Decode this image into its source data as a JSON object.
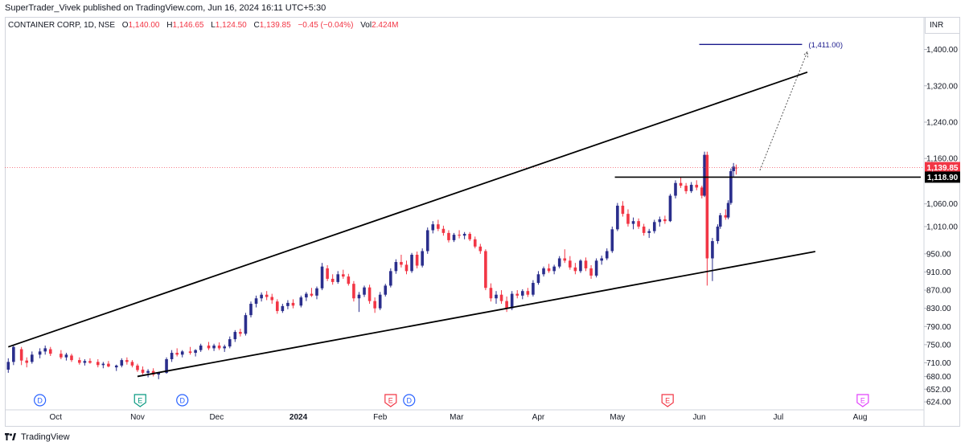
{
  "header": {
    "publisher_line": "SuperTrader_Vivek published on TradingView.com, Jun 16, 2024 16:11 UTC+5:30"
  },
  "legend": {
    "symbol": "CONTAINER CORP, 1D, NSE",
    "open_key": "O",
    "open": "1,140.00",
    "high_key": "H",
    "high": "1,146.65",
    "low_key": "L",
    "low": "1,124.50",
    "close_key": "C",
    "close": "1,139.85",
    "change": "−0.45 (−0.04%)",
    "volume_key": "Vol",
    "volume": "2.424M"
  },
  "currency": "INR",
  "footer": {
    "brand": "TradingView"
  },
  "colors": {
    "up": "#2a2e8c",
    "down": "#f23645",
    "line": "#000000",
    "target": "#1a1a8c",
    "price_line": "#f23645",
    "event_dividend": "#2962ff",
    "event_earnings_past": "#089981",
    "event_earnings_red": "#f23645",
    "event_earnings_future": "#e040fb"
  },
  "chart_data": {
    "type": "candlestick",
    "symbol": "CONTAINER CORP",
    "interval": "1D",
    "exchange": "NSE",
    "ylim": [
      610,
      1470
    ],
    "price_axis_labels": [
      "1,400.00",
      "1,320.00",
      "1,240.00",
      "1,160.00",
      "1,060.00",
      "1,010.00",
      "950.00",
      "910.00",
      "870.00",
      "830.00",
      "790.00",
      "750.00",
      "710.00",
      "680.00",
      "652.00",
      "624.00"
    ],
    "price_axis_values": [
      1400,
      1320,
      1240,
      1160,
      1060,
      1010,
      950,
      910,
      870,
      830,
      790,
      750,
      710,
      680,
      652,
      624
    ],
    "time_axis_labels": [
      "Oct",
      "Nov",
      "Dec",
      "2024",
      "Feb",
      "Mar",
      "Apr",
      "May",
      "Jun",
      "Jul",
      "Aug"
    ],
    "time_axis_bold": "2024",
    "time_axis_dates": [
      "2023-10-01",
      "2023-11-01",
      "2023-12-01",
      "2024-01-01",
      "2024-02-01",
      "2024-03-01",
      "2024-04-01",
      "2024-05-01",
      "2024-06-01",
      "2024-07-01",
      "2024-08-01"
    ],
    "x_range": [
      "2023-09-12",
      "2024-08-24"
    ],
    "last_price": {
      "label": "1,139.85",
      "value": 1139.85
    },
    "level_line": {
      "label": "1,118.90",
      "value": 1118.9,
      "from": "2024-04-30",
      "to": "2024-08-24"
    },
    "target": {
      "label": "(1,411.00)",
      "value": 1411,
      "from": "2024-06-01",
      "to": "2024-07-10"
    },
    "channel": {
      "upper": [
        [
          "2023-09-13",
          745
        ],
        [
          "2024-07-12",
          1350
        ]
      ],
      "lower": [
        [
          "2023-11-01",
          680
        ],
        [
          "2024-07-15",
          955
        ]
      ]
    },
    "projection": [
      [
        "2024-06-24",
        1134
      ],
      [
        "2024-07-12",
        1395
      ]
    ],
    "events": [
      {
        "label": "D",
        "type": "dividend",
        "date": "2023-09-25"
      },
      {
        "label": "E",
        "type": "earnings",
        "date": "2023-11-02"
      },
      {
        "label": "D",
        "type": "dividend",
        "date": "2023-11-18"
      },
      {
        "label": "E",
        "type": "earnings",
        "date": "2024-02-05"
      },
      {
        "label": "D",
        "type": "dividend",
        "date": "2024-02-12"
      },
      {
        "label": "E",
        "type": "earnings",
        "date": "2024-05-20"
      },
      {
        "label": "E",
        "type": "earnings_future",
        "date": "2024-08-02"
      }
    ],
    "candles": [
      {
        "d": "2023-09-13",
        "o": 695,
        "h": 720,
        "l": 688,
        "c": 712
      },
      {
        "d": "2023-09-15",
        "o": 712,
        "h": 748,
        "l": 705,
        "c": 745
      },
      {
        "d": "2023-09-18",
        "o": 740,
        "h": 745,
        "l": 705,
        "c": 715
      },
      {
        "d": "2023-09-20",
        "o": 715,
        "h": 722,
        "l": 700,
        "c": 710
      },
      {
        "d": "2023-09-22",
        "o": 712,
        "h": 735,
        "l": 708,
        "c": 728
      },
      {
        "d": "2023-09-25",
        "o": 728,
        "h": 742,
        "l": 720,
        "c": 735
      },
      {
        "d": "2023-09-27",
        "o": 735,
        "h": 748,
        "l": 728,
        "c": 742
      },
      {
        "d": "2023-09-29",
        "o": 740,
        "h": 745,
        "l": 725,
        "c": 730
      },
      {
        "d": "2023-10-03",
        "o": 730,
        "h": 738,
        "l": 718,
        "c": 722
      },
      {
        "d": "2023-10-05",
        "o": 722,
        "h": 732,
        "l": 715,
        "c": 728
      },
      {
        "d": "2023-10-07",
        "o": 726,
        "h": 730,
        "l": 712,
        "c": 716
      },
      {
        "d": "2023-10-10",
        "o": 716,
        "h": 722,
        "l": 706,
        "c": 710
      },
      {
        "d": "2023-10-12",
        "o": 710,
        "h": 718,
        "l": 704,
        "c": 714
      },
      {
        "d": "2023-10-14",
        "o": 714,
        "h": 720,
        "l": 708,
        "c": 710
      },
      {
        "d": "2023-10-17",
        "o": 712,
        "h": 718,
        "l": 700,
        "c": 705
      },
      {
        "d": "2023-10-19",
        "o": 705,
        "h": 712,
        "l": 698,
        "c": 708
      },
      {
        "d": "2023-10-21",
        "o": 708,
        "h": 714,
        "l": 700,
        "c": 702
      },
      {
        "d": "2023-10-24",
        "o": 700,
        "h": 706,
        "l": 692,
        "c": 704
      },
      {
        "d": "2023-10-26",
        "o": 704,
        "h": 720,
        "l": 700,
        "c": 716
      },
      {
        "d": "2023-10-28",
        "o": 716,
        "h": 722,
        "l": 706,
        "c": 712
      },
      {
        "d": "2023-10-30",
        "o": 712,
        "h": 716,
        "l": 700,
        "c": 704
      },
      {
        "d": "2023-11-01",
        "o": 704,
        "h": 708,
        "l": 690,
        "c": 694
      },
      {
        "d": "2023-11-03",
        "o": 695,
        "h": 702,
        "l": 684,
        "c": 688
      },
      {
        "d": "2023-11-05",
        "o": 688,
        "h": 696,
        "l": 678,
        "c": 692
      },
      {
        "d": "2023-11-07",
        "o": 692,
        "h": 698,
        "l": 680,
        "c": 684
      },
      {
        "d": "2023-11-09",
        "o": 684,
        "h": 690,
        "l": 674,
        "c": 688
      },
      {
        "d": "2023-11-12",
        "o": 688,
        "h": 722,
        "l": 686,
        "c": 718
      },
      {
        "d": "2023-11-14",
        "o": 718,
        "h": 738,
        "l": 712,
        "c": 732
      },
      {
        "d": "2023-11-16",
        "o": 732,
        "h": 742,
        "l": 724,
        "c": 728
      },
      {
        "d": "2023-11-18",
        "o": 728,
        "h": 738,
        "l": 722,
        "c": 735
      },
      {
        "d": "2023-11-21",
        "o": 735,
        "h": 745,
        "l": 728,
        "c": 732
      },
      {
        "d": "2023-11-23",
        "o": 732,
        "h": 740,
        "l": 724,
        "c": 738
      },
      {
        "d": "2023-11-25",
        "o": 738,
        "h": 752,
        "l": 734,
        "c": 748
      },
      {
        "d": "2023-11-28",
        "o": 748,
        "h": 756,
        "l": 738,
        "c": 742
      },
      {
        "d": "2023-11-30",
        "o": 742,
        "h": 752,
        "l": 736,
        "c": 748
      },
      {
        "d": "2023-12-02",
        "o": 748,
        "h": 755,
        "l": 738,
        "c": 742
      },
      {
        "d": "2023-12-04",
        "o": 742,
        "h": 750,
        "l": 734,
        "c": 746
      },
      {
        "d": "2023-12-06",
        "o": 746,
        "h": 768,
        "l": 742,
        "c": 762
      },
      {
        "d": "2023-12-08",
        "o": 762,
        "h": 782,
        "l": 756,
        "c": 778
      },
      {
        "d": "2023-12-10",
        "o": 778,
        "h": 785,
        "l": 768,
        "c": 774
      },
      {
        "d": "2023-12-12",
        "o": 774,
        "h": 820,
        "l": 770,
        "c": 815
      },
      {
        "d": "2023-12-14",
        "o": 815,
        "h": 845,
        "l": 810,
        "c": 840
      },
      {
        "d": "2023-12-16",
        "o": 840,
        "h": 858,
        "l": 832,
        "c": 852
      },
      {
        "d": "2023-12-18",
        "o": 852,
        "h": 865,
        "l": 845,
        "c": 860
      },
      {
        "d": "2023-12-20",
        "o": 860,
        "h": 868,
        "l": 848,
        "c": 855
      },
      {
        "d": "2023-12-22",
        "o": 855,
        "h": 862,
        "l": 840,
        "c": 848
      },
      {
        "d": "2023-12-24",
        "o": 845,
        "h": 850,
        "l": 818,
        "c": 824
      },
      {
        "d": "2023-12-26",
        "o": 824,
        "h": 840,
        "l": 820,
        "c": 835
      },
      {
        "d": "2023-12-28",
        "o": 835,
        "h": 848,
        "l": 828,
        "c": 842
      },
      {
        "d": "2023-12-30",
        "o": 842,
        "h": 850,
        "l": 830,
        "c": 836
      },
      {
        "d": "2024-01-02",
        "o": 836,
        "h": 858,
        "l": 832,
        "c": 854
      },
      {
        "d": "2024-01-04",
        "o": 854,
        "h": 866,
        "l": 846,
        "c": 862
      },
      {
        "d": "2024-01-06",
        "o": 862,
        "h": 875,
        "l": 855,
        "c": 858
      },
      {
        "d": "2024-01-08",
        "o": 858,
        "h": 878,
        "l": 850,
        "c": 874
      },
      {
        "d": "2024-01-10",
        "o": 874,
        "h": 930,
        "l": 870,
        "c": 922
      },
      {
        "d": "2024-01-12",
        "o": 918,
        "h": 925,
        "l": 890,
        "c": 895
      },
      {
        "d": "2024-01-14",
        "o": 895,
        "h": 905,
        "l": 882,
        "c": 888
      },
      {
        "d": "2024-01-16",
        "o": 888,
        "h": 912,
        "l": 884,
        "c": 905
      },
      {
        "d": "2024-01-18",
        "o": 905,
        "h": 915,
        "l": 895,
        "c": 900
      },
      {
        "d": "2024-01-20",
        "o": 900,
        "h": 906,
        "l": 880,
        "c": 884
      },
      {
        "d": "2024-01-22",
        "o": 884,
        "h": 890,
        "l": 845,
        "c": 852
      },
      {
        "d": "2024-01-24",
        "o": 852,
        "h": 866,
        "l": 822,
        "c": 860
      },
      {
        "d": "2024-01-26",
        "o": 860,
        "h": 880,
        "l": 855,
        "c": 876
      },
      {
        "d": "2024-01-28",
        "o": 876,
        "h": 882,
        "l": 840,
        "c": 846
      },
      {
        "d": "2024-01-30",
        "o": 846,
        "h": 854,
        "l": 820,
        "c": 830
      },
      {
        "d": "2024-02-01",
        "o": 830,
        "h": 866,
        "l": 826,
        "c": 860
      },
      {
        "d": "2024-02-03",
        "o": 860,
        "h": 884,
        "l": 856,
        "c": 880
      },
      {
        "d": "2024-02-05",
        "o": 880,
        "h": 918,
        "l": 876,
        "c": 912
      },
      {
        "d": "2024-02-07",
        "o": 912,
        "h": 938,
        "l": 906,
        "c": 932
      },
      {
        "d": "2024-02-09",
        "o": 932,
        "h": 948,
        "l": 920,
        "c": 926
      },
      {
        "d": "2024-02-11",
        "o": 926,
        "h": 935,
        "l": 905,
        "c": 912
      },
      {
        "d": "2024-02-13",
        "o": 912,
        "h": 952,
        "l": 908,
        "c": 948
      },
      {
        "d": "2024-02-15",
        "o": 948,
        "h": 955,
        "l": 918,
        "c": 924
      },
      {
        "d": "2024-02-17",
        "o": 924,
        "h": 962,
        "l": 920,
        "c": 956
      },
      {
        "d": "2024-02-19",
        "o": 956,
        "h": 1008,
        "l": 950,
        "c": 1002
      },
      {
        "d": "2024-02-21",
        "o": 1002,
        "h": 1022,
        "l": 995,
        "c": 1015
      },
      {
        "d": "2024-02-23",
        "o": 1015,
        "h": 1025,
        "l": 1000,
        "c": 1005
      },
      {
        "d": "2024-02-25",
        "o": 1005,
        "h": 1012,
        "l": 990,
        "c": 996
      },
      {
        "d": "2024-02-27",
        "o": 996,
        "h": 1002,
        "l": 975,
        "c": 980
      },
      {
        "d": "2024-02-29",
        "o": 980,
        "h": 996,
        "l": 976,
        "c": 992
      },
      {
        "d": "2024-03-02",
        "o": 992,
        "h": 1002,
        "l": 984,
        "c": 990
      },
      {
        "d": "2024-03-04",
        "o": 990,
        "h": 998,
        "l": 982,
        "c": 994
      },
      {
        "d": "2024-03-06",
        "o": 994,
        "h": 998,
        "l": 978,
        "c": 982
      },
      {
        "d": "2024-03-08",
        "o": 982,
        "h": 988,
        "l": 962,
        "c": 966
      },
      {
        "d": "2024-03-10",
        "o": 966,
        "h": 972,
        "l": 950,
        "c": 956
      },
      {
        "d": "2024-03-12",
        "o": 956,
        "h": 960,
        "l": 870,
        "c": 875
      },
      {
        "d": "2024-03-14",
        "o": 875,
        "h": 885,
        "l": 845,
        "c": 852
      },
      {
        "d": "2024-03-16",
        "o": 852,
        "h": 868,
        "l": 840,
        "c": 860
      },
      {
        "d": "2024-03-18",
        "o": 860,
        "h": 870,
        "l": 840,
        "c": 846
      },
      {
        "d": "2024-03-20",
        "o": 846,
        "h": 856,
        "l": 822,
        "c": 830
      },
      {
        "d": "2024-03-22",
        "o": 830,
        "h": 868,
        "l": 826,
        "c": 862
      },
      {
        "d": "2024-03-24",
        "o": 862,
        "h": 870,
        "l": 852,
        "c": 858
      },
      {
        "d": "2024-03-26",
        "o": 858,
        "h": 872,
        "l": 850,
        "c": 868
      },
      {
        "d": "2024-03-28",
        "o": 868,
        "h": 875,
        "l": 855,
        "c": 860
      },
      {
        "d": "2024-03-30",
        "o": 860,
        "h": 892,
        "l": 856,
        "c": 886
      },
      {
        "d": "2024-04-01",
        "o": 886,
        "h": 912,
        "l": 882,
        "c": 905
      },
      {
        "d": "2024-04-03",
        "o": 905,
        "h": 922,
        "l": 900,
        "c": 918
      },
      {
        "d": "2024-04-05",
        "o": 918,
        "h": 928,
        "l": 908,
        "c": 912
      },
      {
        "d": "2024-04-07",
        "o": 912,
        "h": 926,
        "l": 905,
        "c": 922
      },
      {
        "d": "2024-04-09",
        "o": 922,
        "h": 945,
        "l": 918,
        "c": 940
      },
      {
        "d": "2024-04-11",
        "o": 940,
        "h": 960,
        "l": 930,
        "c": 935
      },
      {
        "d": "2024-04-13",
        "o": 935,
        "h": 945,
        "l": 915,
        "c": 920
      },
      {
        "d": "2024-04-15",
        "o": 920,
        "h": 930,
        "l": 905,
        "c": 912
      },
      {
        "d": "2024-04-17",
        "o": 912,
        "h": 938,
        "l": 908,
        "c": 935
      },
      {
        "d": "2024-04-19",
        "o": 935,
        "h": 942,
        "l": 912,
        "c": 918
      },
      {
        "d": "2024-04-21",
        "o": 918,
        "h": 925,
        "l": 895,
        "c": 902
      },
      {
        "d": "2024-04-23",
        "o": 902,
        "h": 940,
        "l": 898,
        "c": 935
      },
      {
        "d": "2024-04-25",
        "o": 935,
        "h": 946,
        "l": 926,
        "c": 940
      },
      {
        "d": "2024-04-27",
        "o": 940,
        "h": 962,
        "l": 936,
        "c": 956
      },
      {
        "d": "2024-04-29",
        "o": 956,
        "h": 1010,
        "l": 952,
        "c": 1004
      },
      {
        "d": "2024-05-01",
        "o": 1004,
        "h": 1062,
        "l": 1000,
        "c": 1056
      },
      {
        "d": "2024-05-03",
        "o": 1056,
        "h": 1066,
        "l": 1032,
        "c": 1038
      },
      {
        "d": "2024-05-05",
        "o": 1038,
        "h": 1048,
        "l": 1010,
        "c": 1016
      },
      {
        "d": "2024-05-07",
        "o": 1016,
        "h": 1030,
        "l": 1004,
        "c": 1022
      },
      {
        "d": "2024-05-09",
        "o": 1022,
        "h": 1028,
        "l": 1005,
        "c": 1010
      },
      {
        "d": "2024-05-11",
        "o": 1010,
        "h": 1016,
        "l": 990,
        "c": 996
      },
      {
        "d": "2024-05-13",
        "o": 996,
        "h": 1005,
        "l": 985,
        "c": 1000
      },
      {
        "d": "2024-05-15",
        "o": 1000,
        "h": 1025,
        "l": 995,
        "c": 1020
      },
      {
        "d": "2024-05-17",
        "o": 1020,
        "h": 1032,
        "l": 1010,
        "c": 1026
      },
      {
        "d": "2024-05-19",
        "o": 1026,
        "h": 1034,
        "l": 1016,
        "c": 1022
      },
      {
        "d": "2024-05-21",
        "o": 1022,
        "h": 1082,
        "l": 1020,
        "c": 1078
      },
      {
        "d": "2024-05-23",
        "o": 1078,
        "h": 1112,
        "l": 1072,
        "c": 1106
      },
      {
        "d": "2024-05-25",
        "o": 1106,
        "h": 1118,
        "l": 1095,
        "c": 1100
      },
      {
        "d": "2024-05-27",
        "o": 1100,
        "h": 1106,
        "l": 1082,
        "c": 1088
      },
      {
        "d": "2024-05-29",
        "o": 1088,
        "h": 1108,
        "l": 1084,
        "c": 1102
      },
      {
        "d": "2024-05-31",
        "o": 1102,
        "h": 1112,
        "l": 1090,
        "c": 1096
      },
      {
        "d": "2024-06-02",
        "o": 1096,
        "h": 1100,
        "l": 1072,
        "c": 1078
      },
      {
        "d": "2024-06-03",
        "o": 1078,
        "h": 1175,
        "l": 1075,
        "c": 1168
      },
      {
        "d": "2024-06-04",
        "o": 1168,
        "h": 1175,
        "l": 880,
        "c": 940
      },
      {
        "d": "2024-06-06",
        "o": 940,
        "h": 985,
        "l": 890,
        "c": 978
      },
      {
        "d": "2024-06-08",
        "o": 978,
        "h": 1015,
        "l": 972,
        "c": 1010
      },
      {
        "d": "2024-06-09",
        "o": 1010,
        "h": 1040,
        "l": 1005,
        "c": 1035
      },
      {
        "d": "2024-06-11",
        "o": 1035,
        "h": 1048,
        "l": 1025,
        "c": 1030
      },
      {
        "d": "2024-06-12",
        "o": 1030,
        "h": 1068,
        "l": 1026,
        "c": 1062
      },
      {
        "d": "2024-06-13",
        "o": 1062,
        "h": 1138,
        "l": 1058,
        "c": 1132
      },
      {
        "d": "2024-06-14",
        "o": 1132,
        "h": 1150,
        "l": 1120,
        "c": 1142
      },
      {
        "d": "2024-06-15",
        "o": 1140,
        "h": 1146.65,
        "l": 1124.5,
        "c": 1139.85
      }
    ]
  }
}
